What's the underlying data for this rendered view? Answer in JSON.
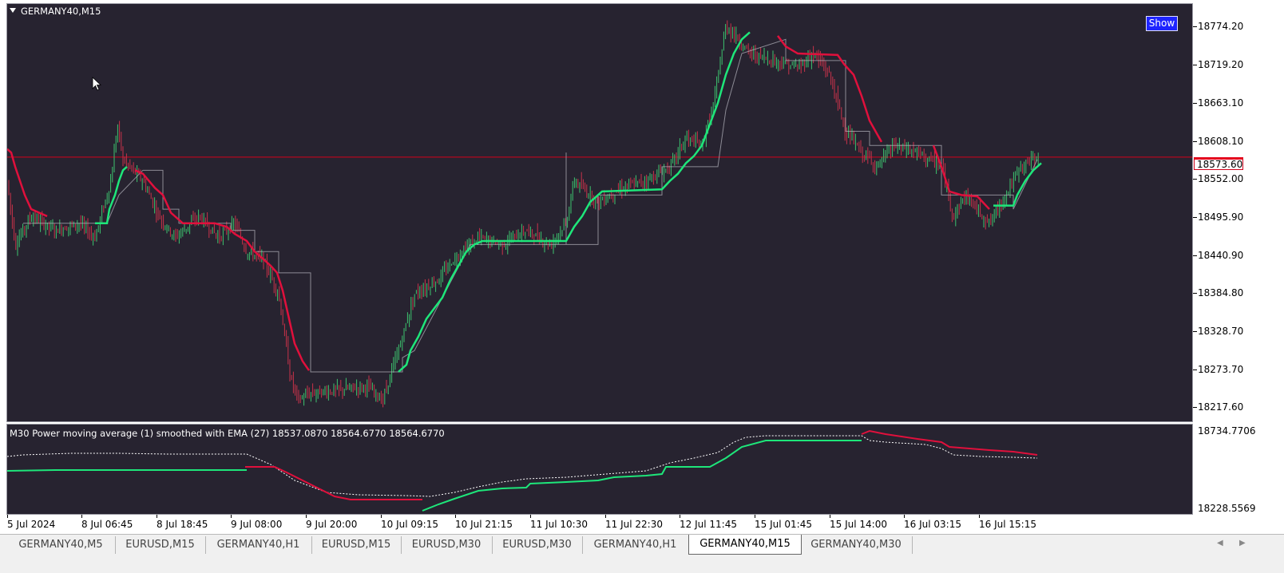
{
  "chart": {
    "symbol_title": "GERMANY40,M15",
    "show_button": "Show",
    "current_price": "18573.60",
    "price_labels": [
      "18774.20",
      "18719.20",
      "18663.10",
      "18608.10",
      "18552.00",
      "18495.90",
      "18440.90",
      "18384.80",
      "18328.70",
      "18273.70",
      "18217.60"
    ],
    "indicator_title": "M30 Power moving average (1) smoothed with EMA (27) 18537.0870 18564.6770 18564.6770",
    "indicator_labels": [
      "18734.7706",
      "18228.5569"
    ],
    "time_labels": [
      "5 Jul 2024",
      "8 Jul 06:45",
      "8 Jul 18:45",
      "9 Jul 08:00",
      "9 Jul 20:00",
      "10 Jul 09:15",
      "10 Jul 21:15",
      "11 Jul 10:30",
      "11 Jul 22:30",
      "12 Jul 11:45",
      "15 Jul 01:45",
      "15 Jul 14:00",
      "16 Jul 03:15",
      "16 Jul 15:15"
    ]
  },
  "tabs": [
    "GERMANY40,M5",
    "EURUSD,M15",
    "GERMANY40,H1",
    "EURUSD,M15",
    "EURUSD,M30",
    "EURUSD,M30",
    "GERMANY40,H1",
    "GERMANY40,M15",
    "GERMANY40,M30"
  ],
  "active_tab": 7,
  "colors": {
    "background": "#272330",
    "bull": "#1ee67a",
    "bear": "#e0103c",
    "candle_bull": "#3cc36e",
    "candle_bear": "#c8324a",
    "price_line": "#d4001a"
  },
  "chart_data": {
    "type": "candlestick",
    "y_range": [
      18200,
      18790
    ],
    "price_closes": [
      18525,
      18510,
      18495,
      18480,
      18470,
      18468,
      18475,
      18472,
      18470,
      18468,
      18480,
      18490,
      18488,
      18470,
      18455,
      18470,
      18480,
      18510,
      18560,
      18590,
      18580,
      18565,
      18545,
      18530,
      18510,
      18480,
      18470,
      18462,
      18468,
      18475,
      18480,
      18485,
      18480,
      18475,
      18462,
      18455,
      18450,
      18440,
      18425,
      18390,
      18350,
      18300,
      18250,
      18230,
      18225,
      18228,
      18232,
      18235,
      18238,
      18240,
      18238,
      18234,
      18230,
      18245,
      18270,
      18295,
      18320,
      18360,
      18380,
      18395,
      18420,
      18430,
      18440,
      18450,
      18455,
      18445,
      18440,
      18445,
      18452,
      18450,
      18460,
      18470,
      18465,
      18470,
      18480,
      18475,
      18475,
      18500,
      18530,
      18545,
      18540,
      18545,
      18550,
      18552,
      18548,
      18550,
      18555,
      18558,
      18560,
      18570,
      18575,
      18580,
      18600,
      18620,
      18660,
      18720,
      18765,
      18755,
      18735,
      18730,
      18725,
      18720,
      18718,
      18722,
      18730,
      18720,
      18705,
      18690,
      18670,
      18640,
      18610,
      18590,
      18575,
      18565,
      18580,
      18585,
      18590,
      18588,
      18585,
      18590,
      18595,
      18585,
      18570,
      18550,
      18530,
      18520,
      18515,
      18510,
      18505,
      18500,
      18510,
      18530,
      18545,
      18555,
      18565,
      18570,
      18575,
      18578
    ],
    "power_ma_steps": [
      {
        "x0": 0,
        "x1": 40,
        "y": 18500,
        "dir": "down"
      }
    ],
    "indicator_range": [
      18228.5569,
      18734.7706
    ]
  }
}
